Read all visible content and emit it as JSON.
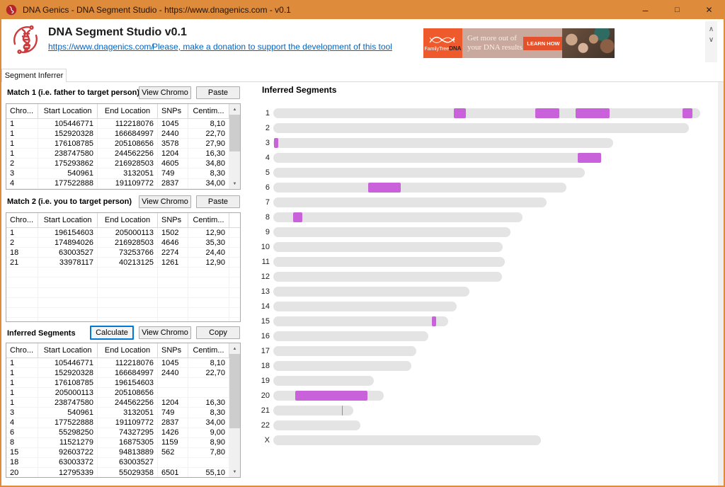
{
  "window": {
    "title": "DNA Genics - DNA Segment Studio - https://www.dnagenics.com - v0.1",
    "controls": {
      "minimize": "–",
      "maximize": "□",
      "close": "✕"
    }
  },
  "header": {
    "app_title": "DNA Segment Studio v0.1",
    "home_link": "https://www.dnagenics.com/",
    "donate_link": "Please, make a donation to support the development of this tool",
    "scrollbar": {
      "up": "∧",
      "down": "∨"
    }
  },
  "banner": {
    "brand_prefix": "FamilyTree",
    "brand_suffix": "DNA",
    "line1": "Get more out of",
    "line2": "your DNA results.",
    "cta": "LEARN HOW"
  },
  "tab": {
    "label": "Segment Inferrer"
  },
  "table_columns": [
    "Chro...",
    "Start Location",
    "End Location",
    "SNPs",
    "Centim..."
  ],
  "scroll_arrows": {
    "up": "▲",
    "down": "▼"
  },
  "match1": {
    "label": "Match 1 (i.e. father to target person)",
    "buttons": [
      "View Chromo",
      "Paste"
    ],
    "rows": [
      [
        "1",
        "105446771",
        "112218076",
        "1045",
        "8,10"
      ],
      [
        "1",
        "152920328",
        "166684997",
        "2440",
        "22,70"
      ],
      [
        "1",
        "176108785",
        "205108656",
        "3578",
        "27,90"
      ],
      [
        "1",
        "238747580",
        "244562256",
        "1204",
        "16,30"
      ],
      [
        "2",
        "175293862",
        "216928503",
        "4605",
        "34,80"
      ],
      [
        "3",
        "540961",
        "3132051",
        "749",
        "8,30"
      ],
      [
        "4",
        "177522888",
        "191109772",
        "2837",
        "34,00"
      ]
    ]
  },
  "match2": {
    "label": "Match 2 (i.e. you to target person)",
    "buttons": [
      "View Chromo",
      "Paste"
    ],
    "rows": [
      [
        "1",
        "196154603",
        "205000113",
        "1502",
        "12,90"
      ],
      [
        "2",
        "174894026",
        "216928503",
        "4646",
        "35,30"
      ],
      [
        "18",
        "63003527",
        "73253766",
        "2274",
        "24,40"
      ],
      [
        "21",
        "33978117",
        "40213125",
        "1261",
        "12,90"
      ]
    ]
  },
  "inferred": {
    "label": "Inferred Segments",
    "buttons": [
      "Calculate",
      "View Chromo",
      "Copy"
    ],
    "rows": [
      [
        "1",
        "105446771",
        "112218076",
        "1045",
        "8,10"
      ],
      [
        "1",
        "152920328",
        "166684997",
        "2440",
        "22,70"
      ],
      [
        "1",
        "176108785",
        "196154603",
        "",
        ""
      ],
      [
        "1",
        "205000113",
        "205108656",
        "",
        ""
      ],
      [
        "1",
        "238747580",
        "244562256",
        "1204",
        "16,30"
      ],
      [
        "3",
        "540961",
        "3132051",
        "749",
        "8,30"
      ],
      [
        "4",
        "177522888",
        "191109772",
        "2837",
        "34,00"
      ],
      [
        "6",
        "55298250",
        "74327295",
        "1426",
        "9,00"
      ],
      [
        "8",
        "11521279",
        "16875305",
        "1159",
        "8,90"
      ],
      [
        "15",
        "92603722",
        "94813889",
        "562",
        "7,80"
      ],
      [
        "18",
        "63003372",
        "63003527",
        "",
        ""
      ],
      [
        "20",
        "12795339",
        "55029358",
        "6501",
        "55,10"
      ]
    ]
  },
  "chart_data": {
    "type": "bar",
    "subtype": "chromosome-segment-map",
    "title": "Inferred Segments",
    "x_unit": "Mbp",
    "x_range": [
      0,
      249
    ],
    "grid": false,
    "legend": "none",
    "categories": [
      "1",
      "2",
      "3",
      "4",
      "5",
      "6",
      "7",
      "8",
      "9",
      "10",
      "11",
      "12",
      "13",
      "14",
      "15",
      "16",
      "17",
      "18",
      "19",
      "20",
      "21",
      "22",
      "X"
    ],
    "bar_lengths_mbp": [
      248.96,
      242.19,
      198.3,
      190.21,
      181.54,
      170.81,
      159.35,
      145.14,
      138.39,
      133.8,
      135.09,
      133.28,
      114.36,
      107.04,
      101.99,
      90.34,
      83.26,
      80.37,
      58.62,
      64.44,
      46.71,
      50.82,
      156.04
    ],
    "series": [
      {
        "name": "inferred-segment",
        "color": "#C962DA",
        "segments_by_chromosome": {
          "1": [
            [
              105.4,
              112.2
            ],
            [
              152.9,
              166.7
            ],
            [
              176.1,
              196.2
            ],
            [
              205.0,
              205.1
            ],
            [
              238.7,
              244.6
            ]
          ],
          "3": [
            [
              0.5,
              3.1
            ]
          ],
          "4": [
            [
              177.5,
              191.1
            ]
          ],
          "6": [
            [
              55.3,
              74.3
            ]
          ],
          "8": [
            [
              11.5,
              16.9
            ]
          ],
          "15": [
            [
              92.6,
              94.8
            ]
          ],
          "18": [
            [
              63.0,
              63.0
            ]
          ],
          "20": [
            [
              12.8,
              55.0
            ]
          ],
          "21": [
            [
              40.0,
              40.3
            ]
          ]
        }
      }
    ],
    "track_color": "#E4E4E4"
  },
  "colors": {
    "titlebar_orange": "#DE8B3C",
    "link_blue": "#0563C1",
    "logo_red": "#CE3A3C",
    "segment_magenta": "#C962DA",
    "bar_gray": "#E4E4E4",
    "focus_blue": "#0078D7",
    "banner_orange": "#EE5A2C",
    "banner_taupe": "#C9A89E",
    "banner_cta_red": "#E4512D"
  }
}
